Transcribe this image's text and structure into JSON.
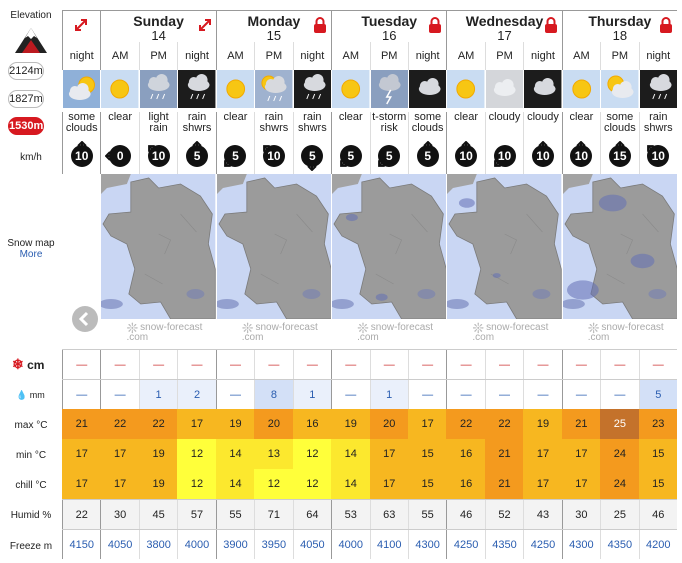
{
  "sidebar": {
    "elevation_label": "Elevation",
    "elevations": [
      "2124m",
      "1827m",
      "1530m"
    ],
    "active_elevation": "1530m",
    "wind_unit": "km/h",
    "snow_map_label": "Snow map",
    "more_link": "More",
    "snow_unit": "cm",
    "rain_unit": "mm",
    "max_label": "max °C",
    "min_label": "min °C",
    "chill_label": "chill °C",
    "humid_label": "Humid %",
    "freeze_label": "Freeze m"
  },
  "days": [
    {
      "name": "",
      "num": "",
      "periods": 1,
      "icon": "expand-arrows-icon"
    },
    {
      "name": "Sunday",
      "num": "14",
      "periods": 3,
      "icon": "expand-arrows-icon"
    },
    {
      "name": "Monday",
      "num": "15",
      "periods": 3,
      "icon": "lock-icon"
    },
    {
      "name": "Tuesday",
      "num": "16",
      "periods": 3,
      "icon": "lock-icon"
    },
    {
      "name": "Wednesday",
      "num": "17",
      "periods": 3,
      "icon": "lock-icon"
    },
    {
      "name": "Thursday",
      "num": "18",
      "periods": 3,
      "icon": "lock-icon"
    }
  ],
  "periods": [
    "night",
    "AM",
    "PM",
    "night",
    "AM",
    "PM",
    "night",
    "AM",
    "PM",
    "night",
    "AM",
    "PM",
    "night",
    "AM",
    "PM",
    "night"
  ],
  "icons": [
    "partly-cloudy-night-icon",
    "sun-icon",
    "light-rain-icon",
    "rain-night-icon",
    "sun-icon",
    "rain-icon",
    "rain-night-icon",
    "sun-icon",
    "thunder-icon",
    "cloudy-night-icon",
    "sun-icon",
    "cloud-icon",
    "cloudy-night-icon",
    "sun-icon",
    "cloudy-sun-icon",
    "rain-night-icon"
  ],
  "summaries": [
    "some clouds",
    "clear",
    "light rain",
    "rain shwrs",
    "clear",
    "rain shwrs",
    "rain shwrs",
    "clear",
    "t-storm risk",
    "some clouds",
    "clear",
    "cloudy",
    "cloudy",
    "clear",
    "some clouds",
    "rain shwrs"
  ],
  "wind": {
    "speeds": [
      "10",
      "0",
      "10",
      "5",
      "5",
      "10",
      "5",
      "5",
      "5",
      "5",
      "10",
      "10",
      "10",
      "10",
      "15",
      "10"
    ],
    "directions": [
      0,
      270,
      315,
      0,
      225,
      315,
      180,
      225,
      225,
      0,
      0,
      225,
      0,
      0,
      0,
      315
    ]
  },
  "snow_map": {
    "attribution": "snow-forecast",
    "attribution_domain": ".com"
  },
  "snow": [
    "—",
    "—",
    "—",
    "—",
    "—",
    "—",
    "—",
    "—",
    "—",
    "—",
    "—",
    "—",
    "—",
    "—",
    "—",
    "—"
  ],
  "rain": [
    "—",
    "—",
    "1",
    "2",
    "—",
    "8",
    "1",
    "—",
    "1",
    "—",
    "—",
    "—",
    "—",
    "—",
    "—",
    "5"
  ],
  "max_temp": [
    "21",
    "22",
    "22",
    "17",
    "19",
    "20",
    "16",
    "19",
    "20",
    "17",
    "22",
    "22",
    "19",
    "21",
    "25",
    "23"
  ],
  "min_temp": [
    "17",
    "17",
    "19",
    "12",
    "14",
    "13",
    "12",
    "14",
    "17",
    "15",
    "16",
    "21",
    "17",
    "17",
    "24",
    "15"
  ],
  "chill_temp": [
    "17",
    "17",
    "19",
    "12",
    "14",
    "12",
    "12",
    "14",
    "17",
    "15",
    "16",
    "21",
    "17",
    "17",
    "24",
    "15"
  ],
  "humidity": [
    "22",
    "30",
    "45",
    "57",
    "55",
    "71",
    "64",
    "53",
    "63",
    "55",
    "46",
    "52",
    "43",
    "30",
    "25",
    "46"
  ],
  "freeze": [
    "4150",
    "4050",
    "3800",
    "4000",
    "3900",
    "3950",
    "4050",
    "4000",
    "4100",
    "4300",
    "4250",
    "4350",
    "4250",
    "4300",
    "4350",
    "4200"
  ],
  "colors": {
    "accent": "#d71920",
    "link": "#2a5db0"
  }
}
